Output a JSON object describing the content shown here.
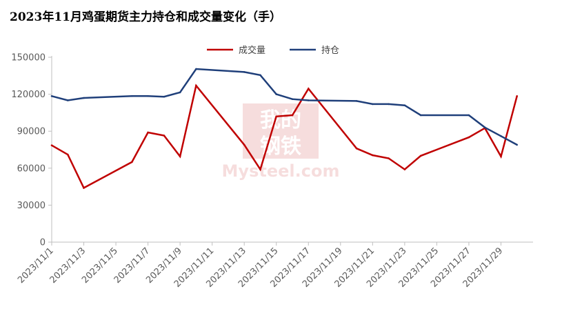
{
  "title": "2023年11月鸡蛋期货主力持仓和成交量变化（手）",
  "legend": {
    "position": "top-center",
    "items": [
      {
        "label": "成交量",
        "color": "#C00000"
      },
      {
        "label": "持仓",
        "color": "#1F3F7A"
      }
    ]
  },
  "watermark": {
    "line1": "我的",
    "line2": "钢铁",
    "line3": "Mysteel.com"
  },
  "chart_data": {
    "type": "line",
    "title": "2023年11月鸡蛋期货主力持仓和成交量变化（手）",
    "xlabel": "",
    "ylabel": "",
    "ylim": [
      0,
      150000
    ],
    "yticks": [
      "0",
      "30000",
      "60000",
      "90000",
      "120000",
      "150000"
    ],
    "xtick_labels": [
      "2023/11/1",
      "2023/11/3",
      "2023/11/5",
      "2023/11/7",
      "2023/11/9",
      "2023/11/11",
      "2023/11/13",
      "2023/11/15",
      "2023/11/17",
      "2023/11/19",
      "2023/11/21",
      "2023/11/23",
      "2023/11/25",
      "2023/11/27",
      "2023/11/29"
    ],
    "x": [
      "2023/11/1",
      "2023/11/2",
      "2023/11/3",
      "2023/11/6",
      "2023/11/7",
      "2023/11/8",
      "2023/11/9",
      "2023/11/10",
      "2023/11/13",
      "2023/11/14",
      "2023/11/15",
      "2023/11/16",
      "2023/11/17",
      "2023/11/20",
      "2023/11/21",
      "2023/11/22",
      "2023/11/23",
      "2023/11/24",
      "2023/11/27",
      "2023/11/28",
      "2023/11/29",
      "2023/11/30"
    ],
    "series": [
      {
        "name": "成交量",
        "color": "#C00000",
        "values": [
          78500,
          71000,
          44000,
          65000,
          89000,
          86500,
          69500,
          127000,
          79000,
          59000,
          102000,
          103000,
          124500,
          76000,
          70500,
          68000,
          59000,
          70000,
          85000,
          92500,
          69500,
          118500
        ]
      },
      {
        "name": "持仓",
        "color": "#1F3F7A",
        "values": [
          118500,
          115000,
          117000,
          118500,
          118500,
          118000,
          121500,
          140500,
          138000,
          135500,
          120000,
          116000,
          115000,
          114500,
          112000,
          112000,
          111000,
          103000,
          103000,
          93000,
          86000,
          79000
        ]
      }
    ]
  }
}
